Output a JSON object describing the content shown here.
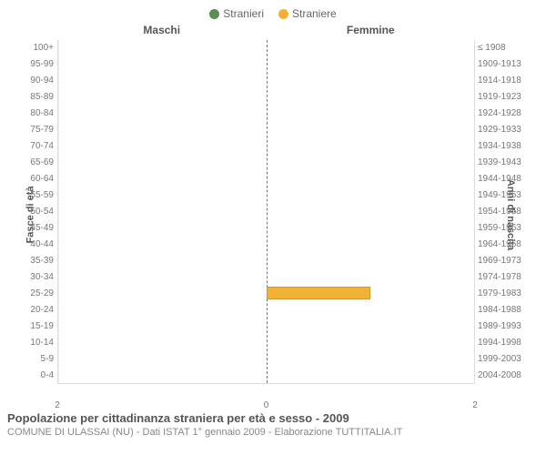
{
  "legend": {
    "male": {
      "label": "Stranieri",
      "color": "#5a8f52"
    },
    "female": {
      "label": "Straniere",
      "color": "#f2b235"
    }
  },
  "headers": {
    "male": "Maschi",
    "female": "Femmine"
  },
  "axis_labels": {
    "left": "Fasce di età",
    "right": "Anni di nascita"
  },
  "chart": {
    "type": "population-pyramid",
    "xmax": 2,
    "xticks": [
      2,
      0,
      2
    ],
    "background": "#ffffff",
    "grid_color": "#dddddd",
    "divider_color": "#6b8e23",
    "rows": [
      {
        "age": "100+",
        "birth": "≤ 1908",
        "m": 0,
        "f": 0
      },
      {
        "age": "95-99",
        "birth": "1909-1913",
        "m": 0,
        "f": 0
      },
      {
        "age": "90-94",
        "birth": "1914-1918",
        "m": 0,
        "f": 0
      },
      {
        "age": "85-89",
        "birth": "1919-1923",
        "m": 0,
        "f": 0
      },
      {
        "age": "80-84",
        "birth": "1924-1928",
        "m": 0,
        "f": 0
      },
      {
        "age": "75-79",
        "birth": "1929-1933",
        "m": 0,
        "f": 0
      },
      {
        "age": "70-74",
        "birth": "1934-1938",
        "m": 0,
        "f": 0
      },
      {
        "age": "65-69",
        "birth": "1939-1943",
        "m": 0,
        "f": 0
      },
      {
        "age": "60-64",
        "birth": "1944-1948",
        "m": 0,
        "f": 0
      },
      {
        "age": "55-59",
        "birth": "1949-1953",
        "m": 0,
        "f": 0
      },
      {
        "age": "50-54",
        "birth": "1954-1958",
        "m": 0,
        "f": 0
      },
      {
        "age": "45-49",
        "birth": "1959-1963",
        "m": 0,
        "f": 0
      },
      {
        "age": "40-44",
        "birth": "1964-1968",
        "m": 0,
        "f": 0
      },
      {
        "age": "35-39",
        "birth": "1969-1973",
        "m": 0,
        "f": 0
      },
      {
        "age": "30-34",
        "birth": "1974-1978",
        "m": 0,
        "f": 0
      },
      {
        "age": "25-29",
        "birth": "1979-1983",
        "m": 0,
        "f": 1
      },
      {
        "age": "20-24",
        "birth": "1984-1988",
        "m": 0,
        "f": 0
      },
      {
        "age": "15-19",
        "birth": "1989-1993",
        "m": 0,
        "f": 0
      },
      {
        "age": "10-14",
        "birth": "1994-1998",
        "m": 0,
        "f": 0
      },
      {
        "age": "5-9",
        "birth": "1999-2003",
        "m": 0,
        "f": 0
      },
      {
        "age": "0-4",
        "birth": "2004-2008",
        "m": 0,
        "f": 0
      }
    ]
  },
  "title": "Popolazione per cittadinanza straniera per età e sesso - 2009",
  "subtitle": "COMUNE DI ULASSAI (NU) - Dati ISTAT 1° gennaio 2009 - Elaborazione TUTTITALIA.IT"
}
